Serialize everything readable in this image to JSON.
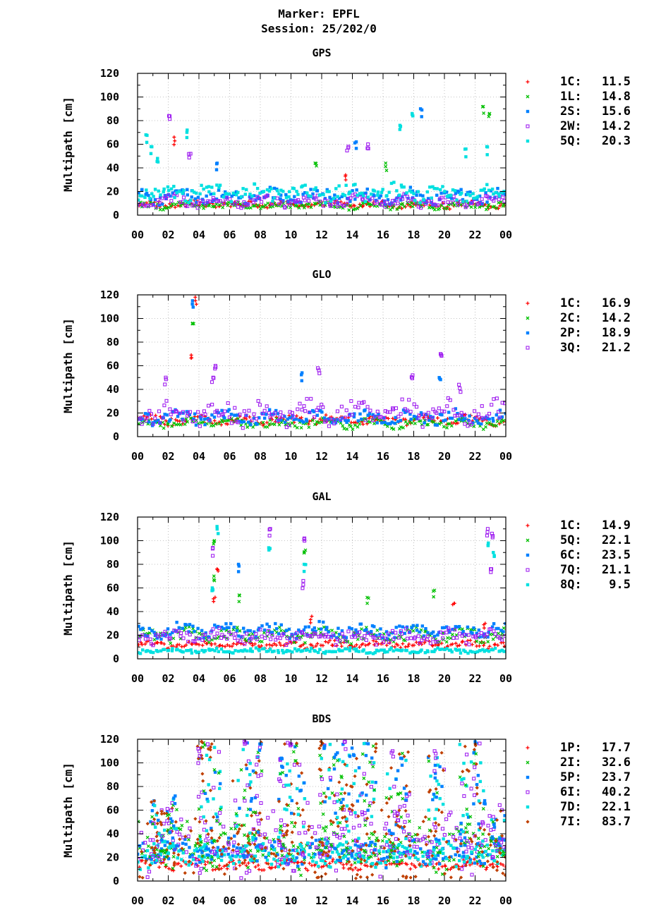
{
  "header": {
    "marker": "Marker: EPFL",
    "session": "Session: 25/202/0"
  },
  "chart_data": [
    {
      "type": "scatter",
      "title": "GPS",
      "ylabel": "Multipath [cm]",
      "xlabel": "",
      "ylim": [
        0,
        120
      ],
      "yticks": [
        "0",
        "20",
        "40",
        "60",
        "80",
        "100",
        "120"
      ],
      "xlim": [
        0,
        24
      ],
      "xticks": [
        "00",
        "02",
        "04",
        "06",
        "08",
        "10",
        "12",
        "14",
        "16",
        "18",
        "20",
        "22",
        "00"
      ],
      "grid": true,
      "legend_position": "right",
      "series": [
        {
          "name": "1C",
          "value": "11.5",
          "color": "#ff0000",
          "marker": "plus",
          "base": 9,
          "spread": 3
        },
        {
          "name": "1L",
          "value": "14.8",
          "color": "#00c000",
          "marker": "cross",
          "base": 8,
          "spread": 3
        },
        {
          "name": "2S",
          "value": "15.6",
          "color": "#0080ff",
          "marker": "square",
          "base": 16,
          "spread": 6
        },
        {
          "name": "2W",
          "value": "14.2",
          "color": "#a020f0",
          "marker": "opensquare",
          "base": 12,
          "spread": 5
        },
        {
          "name": "5Q",
          "value": "20.3",
          "color": "#00e0e0",
          "marker": "square",
          "base": 19,
          "spread": 7
        }
      ],
      "spikes": [
        {
          "x": 0.6,
          "y": 68,
          "s": 4
        },
        {
          "x": 0.9,
          "y": 58,
          "s": 4
        },
        {
          "x": 1.3,
          "y": 48,
          "s": 4
        },
        {
          "x": 2.1,
          "y": 84,
          "s": 3
        },
        {
          "x": 2.4,
          "y": 66,
          "s": 0
        },
        {
          "x": 3.2,
          "y": 72,
          "s": 4
        },
        {
          "x": 3.4,
          "y": 52,
          "s": 3
        },
        {
          "x": 5.2,
          "y": 44,
          "s": 2
        },
        {
          "x": 11.6,
          "y": 44,
          "s": 1
        },
        {
          "x": 13.7,
          "y": 58,
          "s": 3
        },
        {
          "x": 13.6,
          "y": 34,
          "s": 0
        },
        {
          "x": 14.2,
          "y": 62,
          "s": 2
        },
        {
          "x": 15.0,
          "y": 60,
          "s": 3
        },
        {
          "x": 16.2,
          "y": 44,
          "s": 1
        },
        {
          "x": 17.1,
          "y": 76,
          "s": 4
        },
        {
          "x": 17.9,
          "y": 86,
          "s": 4
        },
        {
          "x": 18.5,
          "y": 90,
          "s": 2
        },
        {
          "x": 21.4,
          "y": 56,
          "s": 4
        },
        {
          "x": 22.5,
          "y": 92,
          "s": 1
        },
        {
          "x": 22.9,
          "y": 86,
          "s": 1
        },
        {
          "x": 22.8,
          "y": 58,
          "s": 4
        }
      ]
    },
    {
      "type": "scatter",
      "title": "GLO",
      "ylabel": "Multipath [cm]",
      "xlabel": "",
      "ylim": [
        0,
        120
      ],
      "yticks": [
        "0",
        "20",
        "40",
        "60",
        "80",
        "100",
        "120"
      ],
      "xlim": [
        0,
        24
      ],
      "xticks": [
        "00",
        "02",
        "04",
        "06",
        "08",
        "10",
        "12",
        "14",
        "16",
        "18",
        "20",
        "22",
        "00"
      ],
      "grid": true,
      "legend_position": "right",
      "series": [
        {
          "name": "1C",
          "value": "16.9",
          "color": "#ff0000",
          "marker": "plus",
          "base": 14,
          "spread": 4
        },
        {
          "name": "2C",
          "value": "14.2",
          "color": "#00c000",
          "marker": "cross",
          "base": 11,
          "spread": 4
        },
        {
          "name": "2P",
          "value": "18.9",
          "color": "#0080ff",
          "marker": "square",
          "base": 16,
          "spread": 6
        },
        {
          "name": "3Q",
          "value": "21.2",
          "color": "#a020f0",
          "marker": "opensquare",
          "base": 20,
          "spread": 10
        }
      ],
      "spikes": [
        {
          "x": 3.6,
          "y": 115,
          "s": 2
        },
        {
          "x": 3.8,
          "y": 118,
          "s": 0
        },
        {
          "x": 3.6,
          "y": 96,
          "s": 1
        },
        {
          "x": 3.5,
          "y": 69,
          "s": 0
        },
        {
          "x": 1.8,
          "y": 50,
          "s": 3
        },
        {
          "x": 5.1,
          "y": 60,
          "s": 3
        },
        {
          "x": 4.9,
          "y": 50,
          "s": 3
        },
        {
          "x": 10.7,
          "y": 54,
          "s": 2
        },
        {
          "x": 11.8,
          "y": 58,
          "s": 3
        },
        {
          "x": 17.9,
          "y": 52,
          "s": 3
        },
        {
          "x": 19.8,
          "y": 70,
          "s": 3
        },
        {
          "x": 19.7,
          "y": 50,
          "s": 2
        },
        {
          "x": 21.0,
          "y": 44,
          "s": 3
        }
      ]
    },
    {
      "type": "scatter",
      "title": "GAL",
      "ylabel": "Multipath [cm]",
      "xlabel": "",
      "ylim": [
        0,
        120
      ],
      "yticks": [
        "0",
        "20",
        "40",
        "60",
        "80",
        "100",
        "120"
      ],
      "xlim": [
        0,
        24
      ],
      "xticks": [
        "00",
        "02",
        "04",
        "06",
        "08",
        "10",
        "12",
        "14",
        "16",
        "18",
        "20",
        "22",
        "00"
      ],
      "grid": true,
      "legend_position": "right",
      "series": [
        {
          "name": "1C",
          "value": "14.9",
          "color": "#ff0000",
          "marker": "plus",
          "base": 12,
          "spread": 3
        },
        {
          "name": "5Q",
          "value": "22.1",
          "color": "#00c000",
          "marker": "cross",
          "base": 20,
          "spread": 6
        },
        {
          "name": "6C",
          "value": "23.5",
          "color": "#0080ff",
          "marker": "square",
          "base": 24,
          "spread": 6
        },
        {
          "name": "7Q",
          "value": "21.1",
          "color": "#a020f0",
          "marker": "opensquare",
          "base": 19,
          "spread": 6
        },
        {
          "name": "8Q",
          "value": "9.5",
          "color": "#00e0e0",
          "marker": "square",
          "base": 7,
          "spread": 2
        }
      ],
      "spikes": [
        {
          "x": 5.2,
          "y": 112,
          "s": 4
        },
        {
          "x": 5.0,
          "y": 100,
          "s": 1
        },
        {
          "x": 4.9,
          "y": 94,
          "s": 3
        },
        {
          "x": 5.2,
          "y": 76,
          "s": 0
        },
        {
          "x": 5.0,
          "y": 70,
          "s": 1
        },
        {
          "x": 4.9,
          "y": 60,
          "s": 4
        },
        {
          "x": 5.0,
          "y": 52,
          "s": 0
        },
        {
          "x": 6.6,
          "y": 80,
          "s": 2
        },
        {
          "x": 6.6,
          "y": 54,
          "s": 1
        },
        {
          "x": 8.6,
          "y": 110,
          "s": 3
        },
        {
          "x": 8.6,
          "y": 94,
          "s": 4
        },
        {
          "x": 10.9,
          "y": 102,
          "s": 3
        },
        {
          "x": 10.9,
          "y": 92,
          "s": 1
        },
        {
          "x": 10.9,
          "y": 80,
          "s": 4
        },
        {
          "x": 10.8,
          "y": 66,
          "s": 3
        },
        {
          "x": 11.3,
          "y": 36,
          "s": 0
        },
        {
          "x": 15.0,
          "y": 52,
          "s": 1
        },
        {
          "x": 19.3,
          "y": 58,
          "s": 1
        },
        {
          "x": 20.6,
          "y": 47,
          "s": 0
        },
        {
          "x": 22.8,
          "y": 110,
          "s": 3
        },
        {
          "x": 23.1,
          "y": 106,
          "s": 3
        },
        {
          "x": 22.9,
          "y": 98,
          "s": 4
        },
        {
          "x": 23.2,
          "y": 90,
          "s": 4
        },
        {
          "x": 23.0,
          "y": 76,
          "s": 3
        },
        {
          "x": 22.6,
          "y": 30,
          "s": 0
        }
      ]
    },
    {
      "type": "scatter",
      "title": "BDS",
      "ylabel": "Multipath [cm]",
      "xlabel": "",
      "ylim": [
        0,
        120
      ],
      "yticks": [
        "0",
        "20",
        "40",
        "60",
        "80",
        "100",
        "120"
      ],
      "xlim": [
        0,
        24
      ],
      "xticks": [
        "00",
        "02",
        "04",
        "06",
        "08",
        "10",
        "12",
        "14",
        "16",
        "18",
        "20",
        "22",
        "00"
      ],
      "grid": true,
      "legend_position": "right",
      "series": [
        {
          "name": "1P",
          "value": "17.7",
          "color": "#ff0000",
          "marker": "plus",
          "base": 14,
          "spread": 4
        },
        {
          "name": "2I",
          "value": "32.6",
          "color": "#00c000",
          "marker": "cross",
          "base": 28,
          "spread": 18
        },
        {
          "name": "5P",
          "value": "23.7",
          "color": "#0080ff",
          "marker": "square",
          "base": 24,
          "spread": 10
        },
        {
          "name": "6I",
          "value": "40.2",
          "color": "#a020f0",
          "marker": "opensquare",
          "base": 34,
          "spread": 26
        },
        {
          "name": "7D",
          "value": "22.1",
          "color": "#00e0e0",
          "marker": "square",
          "base": 22,
          "spread": 10
        },
        {
          "name": "7I",
          "value": "83.7",
          "color": "#c04000",
          "marker": "diamond",
          "base": 28,
          "spread": 30
        }
      ],
      "spikes": [
        {
          "x": 2.4,
          "y": 72,
          "s": 2
        },
        {
          "x": 4.0,
          "y": 112,
          "s": 3
        },
        {
          "x": 4.2,
          "y": 118,
          "s": 5
        },
        {
          "x": 4.8,
          "y": 116,
          "s": 5
        },
        {
          "x": 7.0,
          "y": 118,
          "s": 3
        },
        {
          "x": 8.0,
          "y": 116,
          "s": 2
        },
        {
          "x": 9.4,
          "y": 104,
          "s": 2
        },
        {
          "x": 10.0,
          "y": 116,
          "s": 3
        },
        {
          "x": 12.0,
          "y": 118,
          "s": 5
        },
        {
          "x": 13.5,
          "y": 118,
          "s": 3
        },
        {
          "x": 15.5,
          "y": 116,
          "s": 5
        },
        {
          "x": 16.6,
          "y": 110,
          "s": 3
        },
        {
          "x": 17.2,
          "y": 104,
          "s": 2
        },
        {
          "x": 19.4,
          "y": 110,
          "s": 3
        },
        {
          "x": 22.0,
          "y": 116,
          "s": 5
        },
        {
          "x": 22.6,
          "y": 68,
          "s": 2
        }
      ],
      "bursts": [
        {
          "x0": 3.9,
          "x1": 5.6,
          "max": 118
        },
        {
          "x0": 6.2,
          "x1": 8.1,
          "max": 118
        },
        {
          "x0": 9.2,
          "x1": 10.9,
          "max": 118
        },
        {
          "x0": 11.8,
          "x1": 15.6,
          "max": 118
        },
        {
          "x0": 16.2,
          "x1": 17.8,
          "max": 110
        },
        {
          "x0": 18.9,
          "x1": 20.0,
          "max": 110
        },
        {
          "x0": 21.0,
          "x1": 22.6,
          "max": 118
        },
        {
          "x0": 0.8,
          "x1": 2.6,
          "max": 70
        },
        {
          "x0": 23.0,
          "x1": 24.0,
          "max": 60
        }
      ]
    }
  ]
}
